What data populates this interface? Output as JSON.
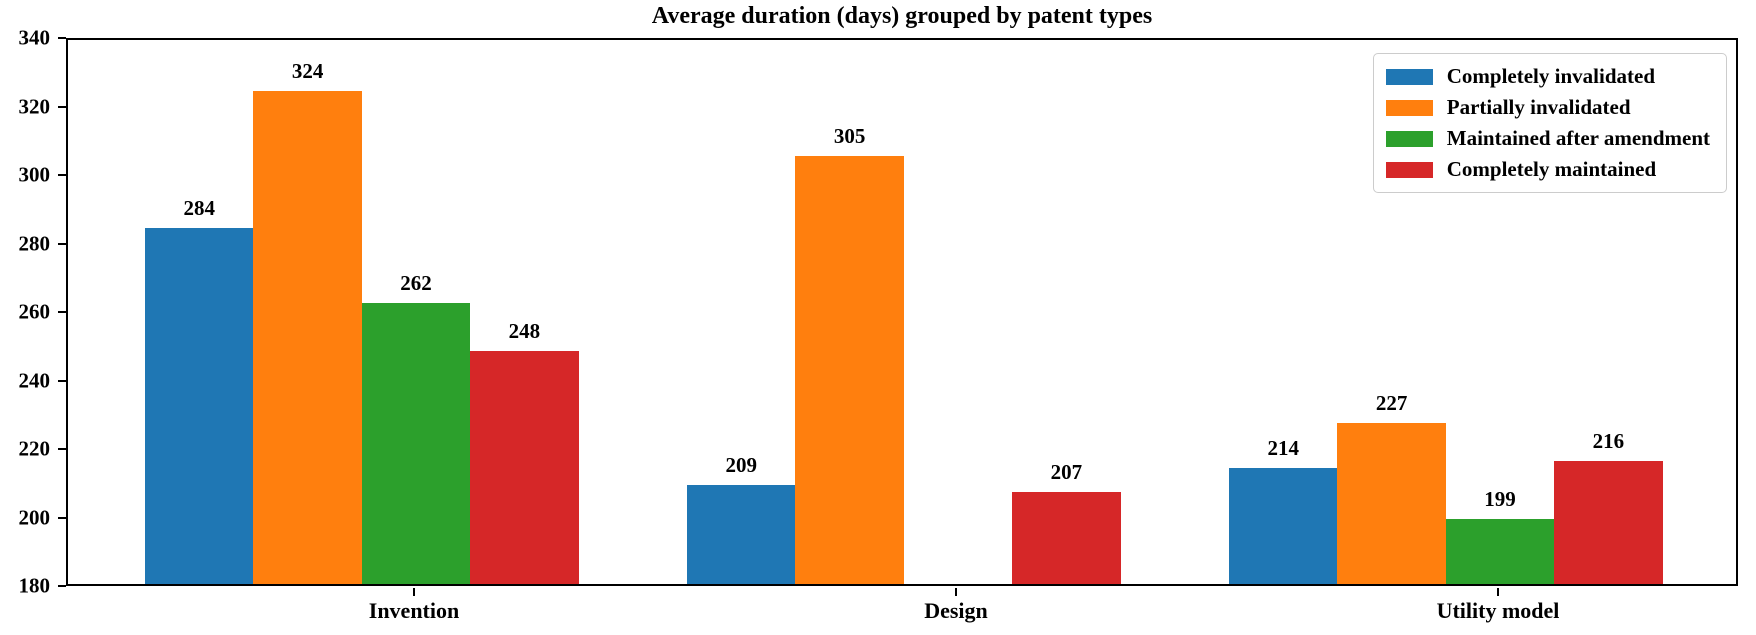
{
  "chart_data": {
    "type": "bar",
    "title": "Average duration (days) grouped by patent types",
    "categories": [
      "Invention",
      "Design",
      "Utility model"
    ],
    "series": [
      {
        "name": "Completely invalidated",
        "color": "#1f77b4",
        "values": [
          284,
          209,
          214
        ]
      },
      {
        "name": "Partially invalidated",
        "color": "#ff7f0e",
        "values": [
          324,
          305,
          227
        ]
      },
      {
        "name": "Maintained after amendment",
        "color": "#2ca02c",
        "values": [
          262,
          null,
          199
        ]
      },
      {
        "name": "Completely maintained",
        "color": "#d62728",
        "values": [
          248,
          207,
          216
        ]
      }
    ],
    "xlabel": "",
    "ylabel": "",
    "ylim": [
      180,
      340
    ],
    "yticks": [
      180,
      200,
      220,
      240,
      260,
      280,
      300,
      320,
      340
    ],
    "bar_value_labels": true,
    "grid": false,
    "legend_position": "upper right",
    "colors": {
      "axis": "#000000",
      "text": "#000000",
      "background": "#ffffff",
      "legend_border": "#cccccc"
    }
  }
}
